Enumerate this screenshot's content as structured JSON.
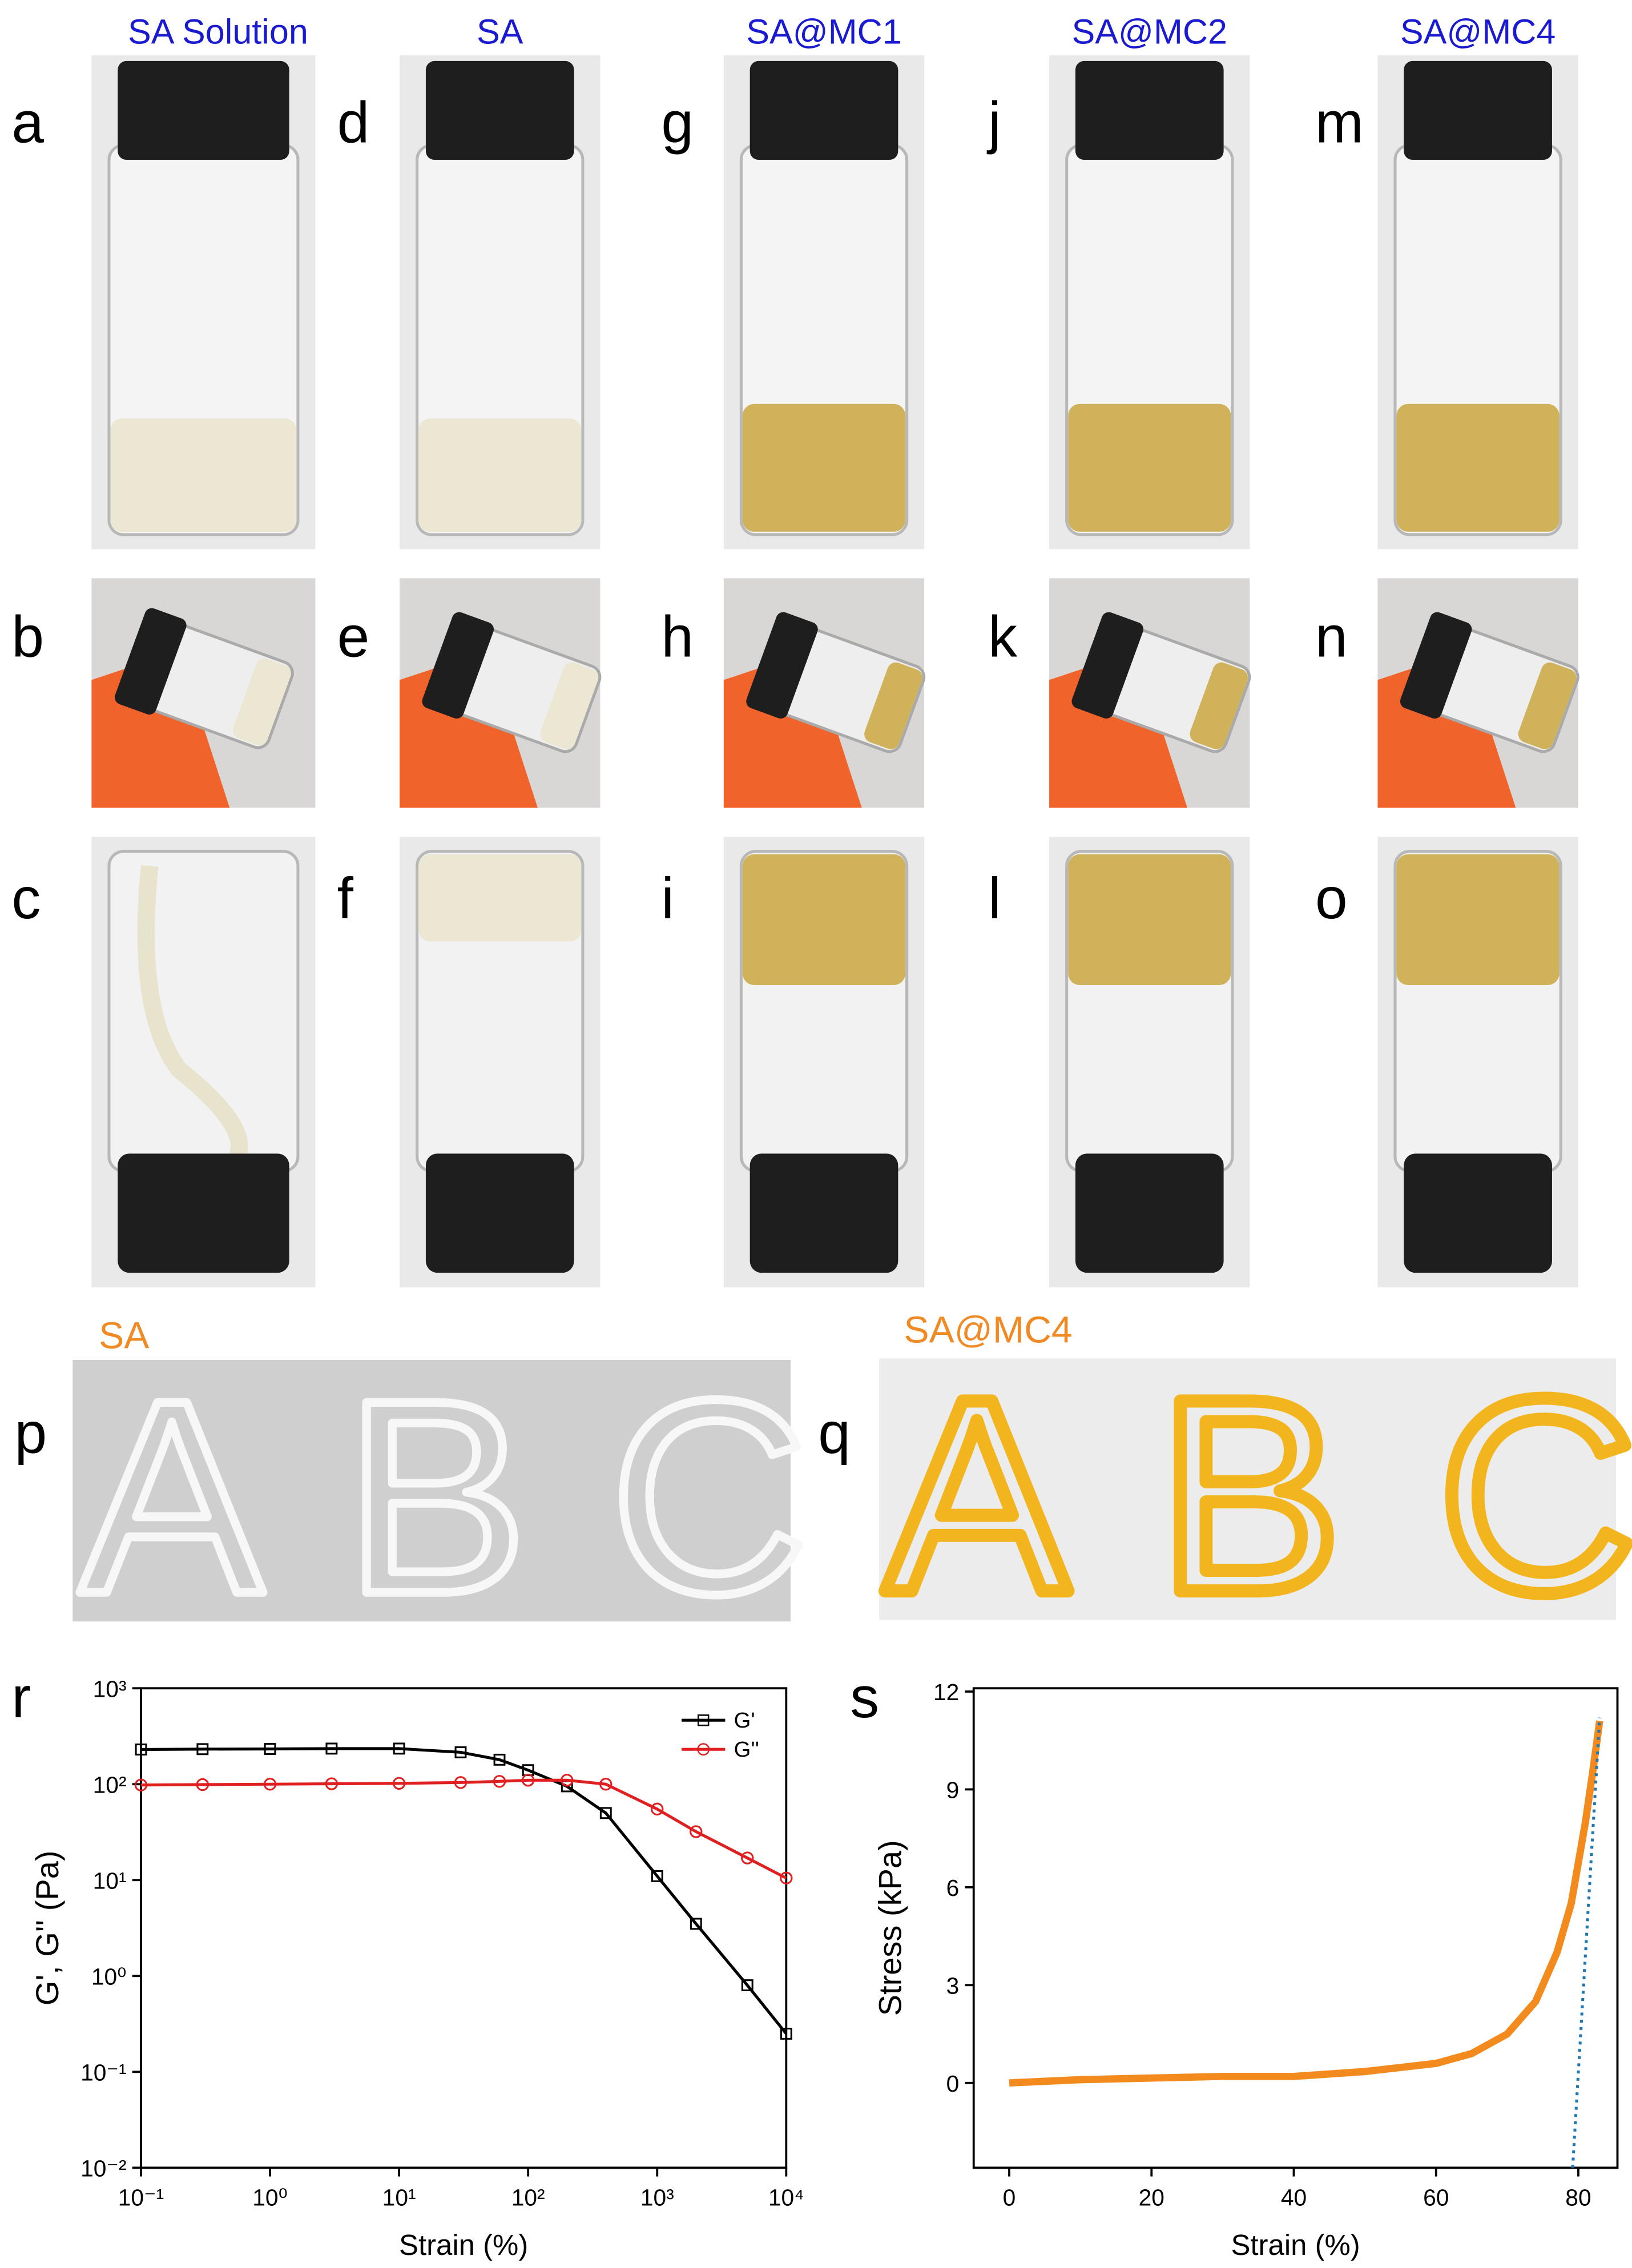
{
  "columns": [
    {
      "title": "SA Solution",
      "panels": [
        "a",
        "b",
        "c"
      ]
    },
    {
      "title": "SA",
      "panels": [
        "d",
        "e",
        "f"
      ]
    },
    {
      "title": "SA@MC1",
      "panels": [
        "g",
        "h",
        "i"
      ]
    },
    {
      "title": "SA@MC2",
      "panels": [
        "j",
        "k",
        "l"
      ]
    },
    {
      "title": "SA@MC4",
      "panels": [
        "m",
        "n",
        "o"
      ]
    }
  ],
  "printing": [
    {
      "panel": "p",
      "label": "SA",
      "letters": [
        "A",
        "B",
        "C"
      ]
    },
    {
      "panel": "q",
      "label": "SA@MC4",
      "letters": [
        "A",
        "B",
        "C"
      ]
    }
  ],
  "chart_data": [
    {
      "type": "line",
      "panel_label": "r",
      "xlabel": "Strain (%)",
      "ylabel": "G', G'' (Pa)",
      "xscale": "log",
      "yscale": "log",
      "xlim": [
        0.1,
        10000
      ],
      "ylim": [
        0.01,
        1000
      ],
      "xticks": [
        {
          "value": 0.1,
          "label": "10⁻¹"
        },
        {
          "value": 1,
          "label": "10⁰"
        },
        {
          "value": 10,
          "label": "10¹"
        },
        {
          "value": 100,
          "label": "10²"
        },
        {
          "value": 1000,
          "label": "10³"
        },
        {
          "value": 10000,
          "label": "10⁴"
        }
      ],
      "yticks": [
        {
          "value": 0.01,
          "label": "10⁻²"
        },
        {
          "value": 0.1,
          "label": "10⁻¹"
        },
        {
          "value": 1,
          "label": "10⁰"
        },
        {
          "value": 10,
          "label": "10¹"
        },
        {
          "value": 100,
          "label": "10²"
        },
        {
          "value": 1000,
          "label": "10³"
        }
      ],
      "legend": "upper right",
      "x": [
        0.1,
        0.3,
        1,
        3,
        10,
        30,
        60,
        100,
        200,
        400,
        1000,
        2000,
        5000,
        10000
      ],
      "series": [
        {
          "name": "G'",
          "color": "#000000",
          "marker": "square",
          "values": [
            230,
            232,
            233,
            235,
            235,
            215,
            180,
            140,
            95,
            50,
            11,
            3.5,
            0.8,
            0.25
          ]
        },
        {
          "name": "G''",
          "color": "#e02020",
          "marker": "circle",
          "values": [
            98,
            99,
            100,
            101,
            102,
            104,
            107,
            110,
            110,
            100,
            55,
            32,
            17,
            10.5
          ]
        }
      ]
    },
    {
      "type": "line",
      "panel_label": "s",
      "xlabel": "Strain (%)",
      "ylabel": "Stress (kPa)",
      "xlim": [
        -5,
        85.5
      ],
      "ylim": [
        -2.6,
        12.1
      ],
      "xticks": [
        0,
        20,
        40,
        60,
        80
      ],
      "yticks": [
        0,
        3,
        6,
        9,
        12
      ],
      "series": [
        {
          "color": "#f28a1e",
          "width": 5,
          "x": [
            0,
            10,
            20,
            30,
            40,
            50,
            60,
            65,
            70,
            74,
            77,
            79,
            81,
            82,
            83
          ],
          "values": [
            0,
            0.1,
            0.15,
            0.2,
            0.2,
            0.35,
            0.6,
            0.9,
            1.5,
            2.5,
            4,
            5.5,
            8,
            9.5,
            11.1
          ]
        },
        {
          "color": "#1f77b4",
          "dash": true,
          "x": [
            79.2,
            83
          ],
          "values": [
            -2.6,
            11.2
          ]
        }
      ]
    }
  ]
}
